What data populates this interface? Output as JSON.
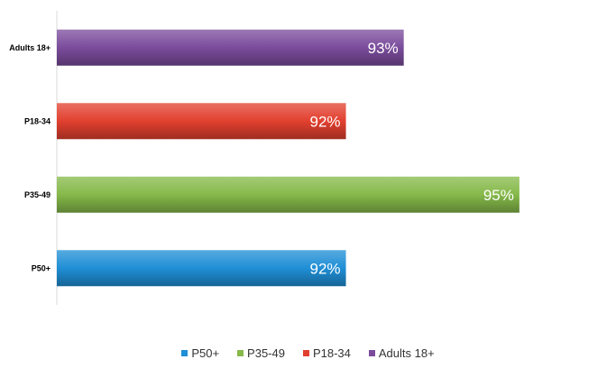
{
  "chart_data": {
    "type": "bar",
    "orientation": "horizontal",
    "categories": [
      "P50+",
      "P35-49",
      "P18-34",
      "Adults 18+"
    ],
    "values": [
      92,
      95,
      92,
      93
    ],
    "data_labels": [
      "92%",
      "95%",
      "92%",
      "93%"
    ],
    "colors": [
      "#1f8fd6",
      "#86b94a",
      "#e2402f",
      "#7b4c9c"
    ],
    "legend_position": "bottom",
    "legend": [
      "P50+",
      "P35-49",
      "P18-34",
      "Adults 18+"
    ],
    "xlim": [
      87,
      96
    ],
    "grid": false
  }
}
